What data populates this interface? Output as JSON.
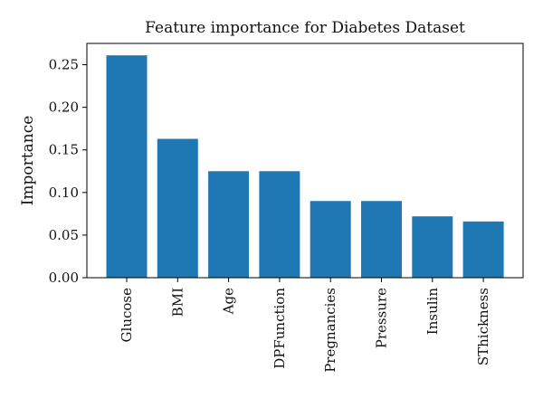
{
  "chart_data": {
    "type": "bar",
    "title": "Feature importance for Diabetes Dataset",
    "xlabel": "",
    "ylabel": "Importance",
    "categories": [
      "Glucose",
      "BMI",
      "Age",
      "DPFunction",
      "Pregnancies",
      "Pressure",
      "Insulin",
      "SThickness"
    ],
    "values": [
      0.261,
      0.163,
      0.125,
      0.125,
      0.09,
      0.09,
      0.072,
      0.066
    ],
    "ylim": [
      0,
      0.275
    ],
    "yticks": [
      0.0,
      0.05,
      0.1,
      0.15,
      0.2,
      0.25
    ],
    "ytick_labels": [
      "0.00",
      "0.05",
      "0.10",
      "0.15",
      "0.20",
      "0.25"
    ],
    "bar_color": "#1f77b4",
    "grid": false,
    "legend": "none"
  }
}
